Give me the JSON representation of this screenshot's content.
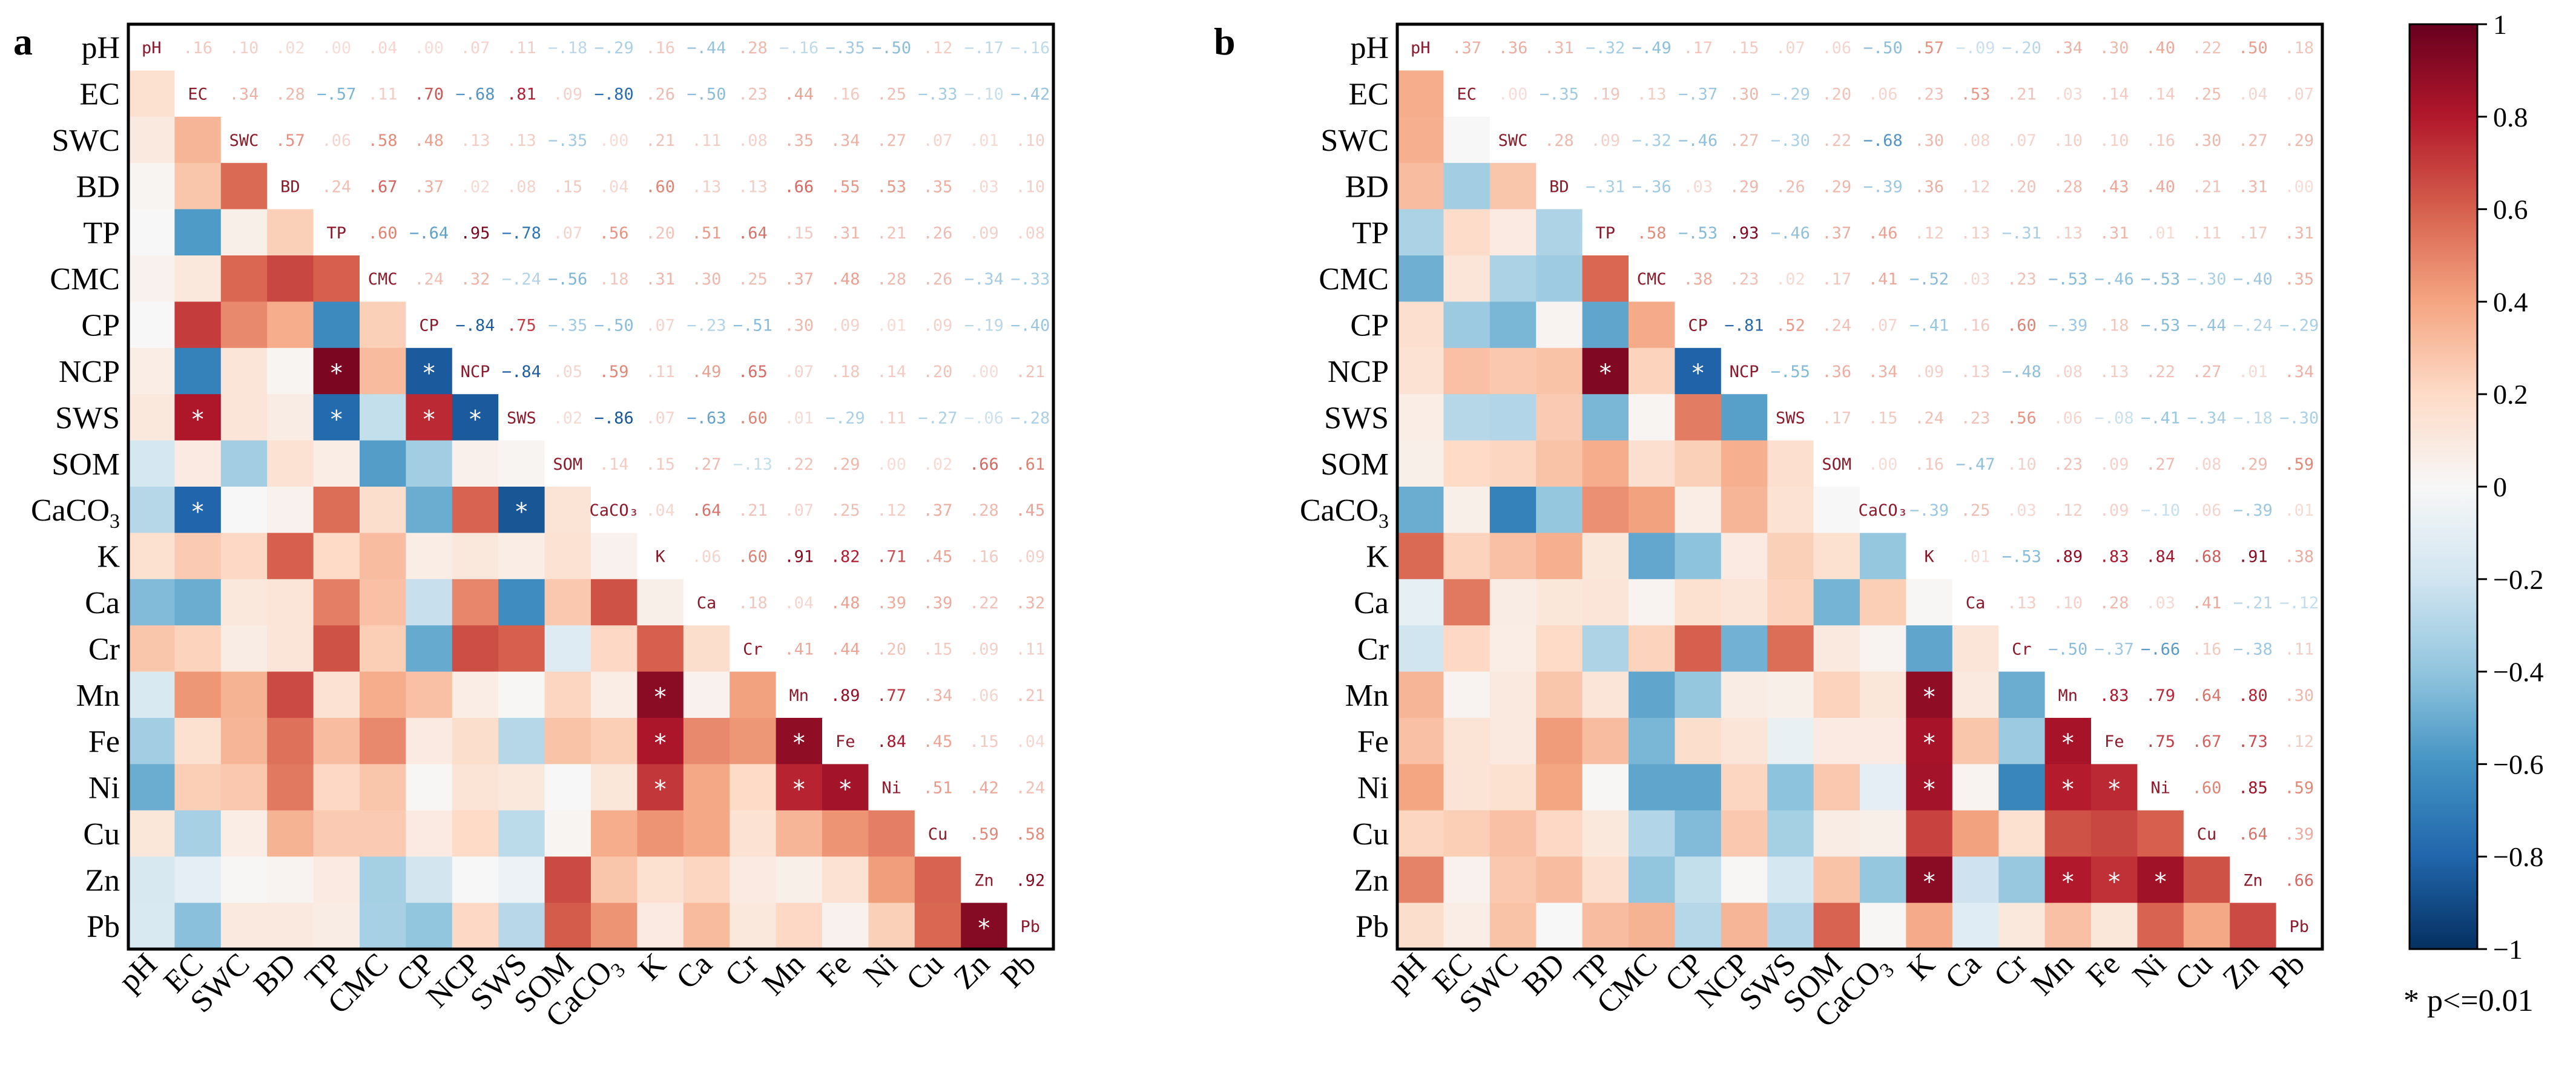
{
  "legend": {
    "ticks": [
      {
        "v": 1,
        "label": "1"
      },
      {
        "v": 0.8,
        "label": "0.8"
      },
      {
        "v": 0.6,
        "label": "0.6"
      },
      {
        "v": 0.4,
        "label": "0.4"
      },
      {
        "v": 0.2,
        "label": "0.2"
      },
      {
        "v": 0,
        "label": "0"
      },
      {
        "v": -0.2,
        "label": "−0.2"
      },
      {
        "v": -0.4,
        "label": "−0.4"
      },
      {
        "v": -0.6,
        "label": "−0.6"
      },
      {
        "v": -0.8,
        "label": "−0.8"
      },
      {
        "v": -1,
        "label": "−1"
      }
    ],
    "note": "* p<=0.01"
  },
  "colors": {
    "neg_strong": "#053061",
    "neg_mid": "#2166ac",
    "neg_light": "#92c5de",
    "neutral": "#f7f7f7",
    "pos_light": "#f4a582",
    "pos_mid": "#d6604d",
    "pos_strong": "#67001f"
  },
  "chart_data": [
    {
      "type": "heatmap",
      "panel": "a",
      "title": "",
      "variables": [
        "pH",
        "EC",
        "SWC",
        "BD",
        "TP",
        "CMC",
        "CP",
        "NCP",
        "SWS",
        "SOM",
        "CaCO3",
        "K",
        "Ca",
        "Cr",
        "Mn",
        "Fe",
        "Ni",
        "Cu",
        "Zn",
        "Pb"
      ],
      "variable_labels": [
        "pH",
        "EC",
        "SWC",
        "BD",
        "TP",
        "CMC",
        "CP",
        "NCP",
        "SWS",
        "SOM",
        "CaCO₃",
        "K",
        "Ca",
        "Cr",
        "Mn",
        "Fe",
        "Ni",
        "Cu",
        "Zn",
        "Pb"
      ],
      "range": [
        -1,
        1
      ],
      "significance_marker": "*",
      "matrix": [
        [
          1.0,
          0.16,
          0.1,
          0.02,
          0.0,
          0.04,
          0.0,
          0.07,
          0.11,
          -0.18,
          -0.29,
          0.16,
          -0.44,
          0.28,
          -0.16,
          -0.35,
          -0.5,
          0.12,
          -0.17,
          -0.16
        ],
        [
          0.16,
          1.0,
          0.34,
          0.28,
          -0.57,
          0.11,
          0.7,
          -0.68,
          0.81,
          0.09,
          -0.8,
          0.26,
          -0.5,
          0.23,
          0.44,
          0.16,
          0.25,
          -0.33,
          -0.1,
          -0.42
        ],
        [
          0.1,
          0.34,
          1.0,
          0.57,
          0.06,
          0.58,
          0.48,
          0.13,
          0.13,
          -0.35,
          0.0,
          0.21,
          0.11,
          0.08,
          0.35,
          0.34,
          0.27,
          0.07,
          0.01,
          0.1
        ],
        [
          0.02,
          0.28,
          0.57,
          1.0,
          0.24,
          0.67,
          0.37,
          0.02,
          0.08,
          0.15,
          0.04,
          0.6,
          0.13,
          0.13,
          0.66,
          0.55,
          0.53,
          0.35,
          0.03,
          0.1
        ],
        [
          0.0,
          -0.57,
          0.06,
          0.24,
          1.0,
          0.6,
          -0.64,
          0.95,
          -0.78,
          0.07,
          0.56,
          0.2,
          0.51,
          0.64,
          0.15,
          0.31,
          0.21,
          0.26,
          0.09,
          0.08
        ],
        [
          0.04,
          0.11,
          0.58,
          0.67,
          0.6,
          1.0,
          0.24,
          0.32,
          -0.24,
          -0.56,
          0.18,
          0.31,
          0.3,
          0.25,
          0.37,
          0.48,
          0.28,
          0.26,
          -0.34,
          -0.33
        ],
        [
          0.0,
          0.7,
          0.48,
          0.37,
          -0.64,
          0.24,
          1.0,
          -0.84,
          0.75,
          -0.35,
          -0.5,
          0.07,
          -0.23,
          -0.51,
          0.3,
          0.09,
          0.01,
          0.09,
          -0.19,
          -0.4
        ],
        [
          0.07,
          -0.68,
          0.13,
          0.02,
          0.95,
          0.32,
          -0.84,
          1.0,
          -0.84,
          0.05,
          0.59,
          0.11,
          0.49,
          0.65,
          0.07,
          0.18,
          0.14,
          0.2,
          0.0,
          0.21
        ],
        [
          0.11,
          0.81,
          0.13,
          0.08,
          -0.78,
          -0.24,
          0.75,
          -0.84,
          1.0,
          0.02,
          -0.86,
          0.07,
          -0.63,
          0.6,
          0.01,
          -0.29,
          0.11,
          -0.27,
          -0.06,
          -0.28
        ],
        [
          -0.18,
          0.09,
          -0.35,
          0.15,
          0.07,
          -0.56,
          -0.35,
          0.05,
          0.02,
          1.0,
          0.14,
          0.15,
          0.27,
          -0.13,
          0.22,
          0.29,
          0.0,
          0.02,
          0.66,
          0.61
        ],
        [
          -0.29,
          -0.8,
          0.0,
          0.04,
          0.56,
          0.18,
          -0.5,
          0.59,
          -0.86,
          0.14,
          1.0,
          0.04,
          0.64,
          0.21,
          0.07,
          0.25,
          0.12,
          0.37,
          0.28,
          0.45
        ],
        [
          0.16,
          0.26,
          0.21,
          0.6,
          0.2,
          0.31,
          0.07,
          0.11,
          0.07,
          0.15,
          0.04,
          1.0,
          0.06,
          0.6,
          0.91,
          0.82,
          0.71,
          0.45,
          0.16,
          0.09
        ],
        [
          -0.44,
          -0.5,
          0.11,
          0.13,
          0.51,
          0.3,
          -0.23,
          0.49,
          -0.63,
          0.27,
          0.64,
          0.06,
          1.0,
          0.18,
          0.04,
          0.48,
          0.39,
          0.39,
          0.22,
          0.32
        ],
        [
          0.28,
          0.23,
          0.08,
          0.13,
          0.64,
          0.25,
          -0.51,
          0.65,
          0.6,
          -0.13,
          0.21,
          0.6,
          0.18,
          1.0,
          0.41,
          0.44,
          0.2,
          0.15,
          0.09,
          0.11
        ],
        [
          -0.16,
          0.44,
          0.35,
          0.66,
          0.15,
          0.37,
          0.3,
          0.07,
          0.01,
          0.22,
          0.07,
          0.91,
          0.04,
          0.41,
          1.0,
          0.89,
          0.77,
          0.34,
          0.06,
          0.21
        ],
        [
          -0.35,
          0.16,
          0.34,
          0.55,
          0.31,
          0.48,
          0.09,
          0.18,
          -0.29,
          0.29,
          0.25,
          0.82,
          0.48,
          0.44,
          0.89,
          1.0,
          0.84,
          0.45,
          0.15,
          0.04
        ],
        [
          -0.5,
          0.25,
          0.27,
          0.53,
          0.21,
          0.28,
          0.01,
          0.14,
          0.11,
          0.0,
          0.12,
          0.71,
          0.39,
          0.2,
          0.77,
          0.84,
          1.0,
          0.51,
          0.42,
          0.24
        ],
        [
          0.12,
          -0.33,
          0.07,
          0.35,
          0.26,
          0.26,
          0.09,
          0.2,
          -0.27,
          0.02,
          0.37,
          0.45,
          0.39,
          0.15,
          0.34,
          0.45,
          0.51,
          1.0,
          0.59,
          0.58
        ],
        [
          -0.17,
          -0.1,
          0.01,
          0.03,
          0.09,
          -0.34,
          -0.19,
          0.0,
          -0.06,
          0.66,
          0.28,
          0.16,
          0.22,
          0.09,
          0.06,
          0.15,
          0.42,
          0.59,
          1.0,
          0.92
        ],
        [
          -0.16,
          -0.42,
          0.1,
          0.1,
          0.08,
          -0.33,
          -0.4,
          0.21,
          -0.28,
          0.61,
          0.45,
          0.09,
          0.32,
          0.11,
          0.21,
          0.04,
          0.24,
          0.58,
          0.92,
          1.0
        ]
      ],
      "significant_lower": [
        [
          8,
          1
        ],
        [
          7,
          4
        ],
        [
          8,
          4
        ],
        [
          7,
          6
        ],
        [
          8,
          6
        ],
        [
          8,
          7
        ],
        [
          10,
          1
        ],
        [
          10,
          8
        ],
        [
          14,
          11
        ],
        [
          15,
          11
        ],
        [
          16,
          11
        ],
        [
          15,
          14
        ],
        [
          16,
          14
        ],
        [
          16,
          15
        ],
        [
          19,
          18
        ]
      ]
    },
    {
      "type": "heatmap",
      "panel": "b",
      "title": "",
      "variables": [
        "pH",
        "EC",
        "SWC",
        "BD",
        "TP",
        "CMC",
        "CP",
        "NCP",
        "SWS",
        "SOM",
        "CaCO3",
        "K",
        "Ca",
        "Cr",
        "Mn",
        "Fe",
        "Ni",
        "Cu",
        "Zn",
        "Pb"
      ],
      "variable_labels": [
        "pH",
        "EC",
        "SWC",
        "BD",
        "TP",
        "CMC",
        "CP",
        "NCP",
        "SWS",
        "SOM",
        "CaCO₃",
        "K",
        "Ca",
        "Cr",
        "Mn",
        "Fe",
        "Ni",
        "Cu",
        "Zn",
        "Pb"
      ],
      "range": [
        -1,
        1
      ],
      "significance_marker": "*",
      "matrix": [
        [
          1.0,
          0.37,
          0.36,
          0.31,
          -0.32,
          -0.49,
          0.17,
          0.15,
          0.07,
          0.06,
          -0.5,
          0.57,
          -0.09,
          -0.2,
          0.34,
          0.3,
          0.4,
          0.22,
          0.5,
          0.18
        ],
        [
          0.37,
          1.0,
          0.0,
          -0.35,
          0.19,
          0.13,
          -0.37,
          0.3,
          -0.29,
          0.2,
          0.06,
          0.23,
          0.53,
          0.21,
          0.03,
          0.14,
          0.14,
          0.25,
          0.04,
          0.07
        ],
        [
          0.36,
          0.0,
          1.0,
          0.28,
          0.09,
          -0.32,
          -0.46,
          0.27,
          -0.3,
          0.22,
          -0.68,
          0.3,
          0.08,
          0.07,
          0.1,
          0.1,
          0.16,
          0.3,
          0.27,
          0.29
        ],
        [
          0.31,
          -0.35,
          0.28,
          1.0,
          -0.31,
          -0.36,
          0.03,
          0.29,
          0.26,
          0.29,
          -0.39,
          0.36,
          0.12,
          0.2,
          0.28,
          0.43,
          0.4,
          0.21,
          0.31,
          0.0
        ],
        [
          -0.32,
          0.19,
          0.09,
          -0.31,
          1.0,
          0.58,
          -0.53,
          0.93,
          -0.46,
          0.37,
          0.46,
          0.12,
          0.13,
          -0.31,
          0.13,
          0.31,
          0.01,
          0.11,
          0.17,
          0.31
        ],
        [
          -0.49,
          0.13,
          -0.32,
          -0.36,
          0.58,
          1.0,
          0.38,
          0.23,
          0.02,
          0.17,
          0.41,
          -0.52,
          0.03,
          0.23,
          -0.53,
          -0.46,
          -0.53,
          -0.3,
          -0.4,
          0.35
        ],
        [
          0.17,
          -0.37,
          -0.46,
          0.03,
          -0.53,
          0.38,
          1.0,
          -0.81,
          0.52,
          0.24,
          0.07,
          -0.41,
          0.16,
          0.6,
          -0.39,
          0.18,
          -0.53,
          -0.44,
          -0.24,
          -0.29
        ],
        [
          0.15,
          0.3,
          0.27,
          0.29,
          0.93,
          0.23,
          -0.81,
          1.0,
          -0.55,
          0.36,
          0.34,
          0.09,
          0.13,
          -0.48,
          0.08,
          0.13,
          0.22,
          0.27,
          0.01,
          0.34
        ],
        [
          0.07,
          -0.29,
          -0.3,
          0.26,
          -0.46,
          0.02,
          0.52,
          -0.55,
          1.0,
          0.17,
          0.15,
          0.24,
          0.23,
          0.56,
          0.06,
          -0.08,
          -0.41,
          -0.34,
          -0.18,
          -0.3
        ],
        [
          0.06,
          0.2,
          0.22,
          0.29,
          0.37,
          0.17,
          0.24,
          0.36,
          0.17,
          1.0,
          0.0,
          0.16,
          -0.47,
          0.1,
          0.23,
          0.09,
          0.27,
          0.08,
          0.29,
          0.59
        ],
        [
          -0.5,
          0.06,
          -0.68,
          -0.39,
          0.46,
          0.41,
          0.07,
          0.34,
          0.15,
          0.0,
          1.0,
          -0.39,
          0.25,
          0.03,
          0.12,
          0.09,
          -0.1,
          0.06,
          -0.39,
          0.01
        ],
        [
          0.57,
          0.23,
          0.3,
          0.36,
          0.12,
          -0.52,
          -0.41,
          0.09,
          0.24,
          0.16,
          -0.39,
          1.0,
          0.01,
          -0.53,
          0.89,
          0.83,
          0.84,
          0.68,
          0.91,
          0.38
        ],
        [
          -0.09,
          0.53,
          0.08,
          0.12,
          0.13,
          0.03,
          0.16,
          0.13,
          0.23,
          -0.47,
          0.25,
          0.01,
          1.0,
          0.13,
          0.1,
          0.28,
          0.03,
          0.41,
          -0.21,
          -0.12
        ],
        [
          -0.2,
          0.21,
          0.07,
          0.2,
          -0.31,
          0.23,
          0.6,
          -0.48,
          0.56,
          0.1,
          0.03,
          -0.53,
          0.13,
          1.0,
          -0.5,
          -0.37,
          -0.66,
          0.16,
          -0.38,
          0.11
        ],
        [
          0.34,
          0.03,
          0.1,
          0.28,
          0.13,
          -0.53,
          -0.39,
          0.08,
          0.06,
          0.23,
          0.12,
          0.89,
          0.1,
          -0.5,
          1.0,
          0.83,
          0.79,
          0.64,
          0.8,
          0.3
        ],
        [
          0.3,
          0.14,
          0.1,
          0.43,
          0.31,
          -0.46,
          0.18,
          0.13,
          -0.08,
          0.09,
          0.09,
          0.83,
          0.28,
          -0.37,
          0.83,
          1.0,
          0.75,
          0.67,
          0.73,
          0.12
        ],
        [
          0.4,
          0.14,
          0.16,
          0.4,
          0.01,
          -0.53,
          -0.53,
          0.22,
          -0.41,
          0.27,
          -0.1,
          0.84,
          0.03,
          -0.66,
          0.79,
          0.75,
          1.0,
          0.6,
          0.85,
          0.59
        ],
        [
          0.22,
          0.25,
          0.3,
          0.21,
          0.11,
          -0.3,
          -0.44,
          0.27,
          -0.34,
          0.08,
          0.06,
          0.68,
          0.41,
          0.16,
          0.64,
          0.67,
          0.6,
          1.0,
          0.64,
          0.39
        ],
        [
          0.5,
          0.04,
          0.27,
          0.31,
          0.17,
          -0.4,
          -0.24,
          0.01,
          -0.18,
          0.29,
          -0.39,
          0.91,
          -0.21,
          -0.38,
          0.8,
          0.73,
          0.85,
          0.64,
          1.0,
          0.66
        ],
        [
          0.18,
          0.07,
          0.29,
          0.0,
          0.31,
          0.35,
          -0.29,
          0.34,
          -0.3,
          0.59,
          0.01,
          0.38,
          -0.12,
          0.11,
          0.3,
          0.12,
          0.59,
          0.39,
          0.66,
          1.0
        ]
      ],
      "significant_lower": [
        [
          7,
          4
        ],
        [
          7,
          6
        ],
        [
          14,
          11
        ],
        [
          15,
          11
        ],
        [
          16,
          11
        ],
        [
          18,
          11
        ],
        [
          15,
          14
        ],
        [
          16,
          14
        ],
        [
          16,
          15
        ],
        [
          18,
          14
        ],
        [
          18,
          15
        ],
        [
          18,
          16
        ]
      ]
    }
  ],
  "panels": [
    {
      "letter": "a"
    },
    {
      "letter": "b"
    }
  ]
}
